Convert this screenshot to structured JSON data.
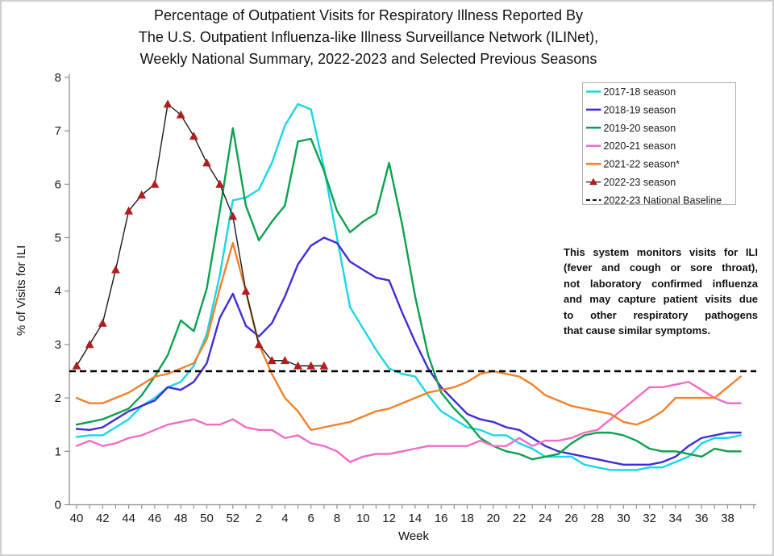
{
  "title": {
    "lines": [
      "Percentage of Outpatient Visits for Respiratory Illness Reported By",
      "The U.S. Outpatient Influenza-like Illness Surveillance Network (ILINet),",
      "Weekly National Summary, 2022-2023 and Selected Previous Seasons"
    ]
  },
  "annotation": {
    "lines": [
      "This system monitors visits for ILI",
      "(fever and cough or sore throat),",
      "not laboratory confirmed influenza",
      "and may capture patient visits due",
      "to other respiratory pathogens",
      "that cause similar symptoms."
    ]
  },
  "legend": {
    "border_color": "#b0b0b0",
    "items": [
      {
        "label": "2017-18 season",
        "type": "line",
        "color": "#19D7E4"
      },
      {
        "label": "2018-19 season",
        "type": "line",
        "color": "#3E2ED4"
      },
      {
        "label": "2019-20 season",
        "type": "line",
        "color": "#0CA14F"
      },
      {
        "label": "2020-21 season",
        "type": "line",
        "color": "#F26BC4"
      },
      {
        "label": "2021-22 season*",
        "type": "line",
        "color": "#F2822D"
      },
      {
        "label": "2022-23 season",
        "type": "triangle-line",
        "color": "#1a1a1a",
        "marker_color": "#B21E1E"
      },
      {
        "label": "2022-23 National Baseline",
        "type": "dashed",
        "color": "#000000"
      }
    ]
  },
  "chart_data": {
    "type": "line",
    "title": "Percentage of Outpatient Visits for Respiratory Illness (ILINet), Weekly National Summary, 2022-2023 and Selected Previous Seasons",
    "xlabel": "Week",
    "ylabel": "% of Visits for ILI",
    "ylim": [
      0,
      8
    ],
    "y_ticks": [
      0,
      1,
      2,
      3,
      4,
      5,
      6,
      7,
      8
    ],
    "x_weeks": [
      40,
      41,
      42,
      43,
      44,
      45,
      46,
      47,
      48,
      49,
      50,
      51,
      52,
      1,
      2,
      3,
      4,
      5,
      6,
      7,
      8,
      9,
      10,
      11,
      12,
      13,
      14,
      15,
      16,
      17,
      18,
      19,
      20,
      21,
      22,
      23,
      24,
      25,
      26,
      27,
      28,
      29,
      30,
      31,
      32,
      33,
      34,
      35,
      36,
      37,
      38,
      39
    ],
    "x_ticks_labeled": [
      40,
      42,
      44,
      46,
      48,
      50,
      52,
      2,
      4,
      6,
      8,
      10,
      12,
      14,
      16,
      18,
      20,
      22,
      24,
      26,
      28,
      30,
      32,
      34,
      36,
      38
    ],
    "grid": false,
    "legend_position": "upper right",
    "baseline": {
      "label": "2022-23 National Baseline",
      "value": 2.5,
      "color": "#000000"
    },
    "series": [
      {
        "name": "2017-18 season",
        "color": "#19D7E4",
        "values": [
          1.27,
          1.3,
          1.3,
          1.45,
          1.6,
          1.85,
          2.0,
          2.2,
          2.3,
          2.6,
          3.2,
          4.3,
          5.7,
          5.75,
          5.9,
          6.4,
          7.1,
          7.5,
          7.4,
          6.3,
          5.0,
          3.7,
          3.3,
          2.9,
          2.55,
          2.45,
          2.4,
          2.05,
          1.75,
          1.6,
          1.45,
          1.4,
          1.3,
          1.3,
          1.15,
          1.05,
          0.9,
          0.9,
          0.9,
          0.75,
          0.7,
          0.65,
          0.65,
          0.65,
          0.7,
          0.7,
          0.8,
          0.9,
          1.15,
          1.25,
          1.25,
          1.3
        ]
      },
      {
        "name": "2018-19 season",
        "color": "#3E2ED4",
        "values": [
          1.42,
          1.4,
          1.45,
          1.6,
          1.75,
          1.85,
          1.95,
          2.2,
          2.15,
          2.3,
          2.65,
          3.5,
          3.95,
          3.35,
          3.15,
          3.4,
          3.9,
          4.5,
          4.85,
          5.0,
          4.9,
          4.55,
          4.4,
          4.25,
          4.2,
          3.6,
          3.05,
          2.55,
          2.2,
          1.95,
          1.7,
          1.6,
          1.55,
          1.45,
          1.4,
          1.25,
          1.1,
          1.0,
          0.95,
          0.9,
          0.85,
          0.8,
          0.75,
          0.75,
          0.75,
          0.8,
          0.9,
          1.1,
          1.25,
          1.3,
          1.35,
          1.35
        ]
      },
      {
        "name": "2019-20 season",
        "color": "#0CA14F",
        "values": [
          1.5,
          1.55,
          1.6,
          1.7,
          1.8,
          2.05,
          2.4,
          2.8,
          3.45,
          3.25,
          4.05,
          5.5,
          7.05,
          5.6,
          4.95,
          5.3,
          5.6,
          6.8,
          6.85,
          6.25,
          5.5,
          5.1,
          5.3,
          5.45,
          6.4,
          5.25,
          3.9,
          2.8,
          2.1,
          1.8,
          1.55,
          1.25,
          1.1,
          1.0,
          0.95,
          0.85,
          0.9,
          0.95,
          1.15,
          1.3,
          1.35,
          1.35,
          1.3,
          1.2,
          1.05,
          1.0,
          1.0,
          0.95,
          0.9,
          1.05,
          1.0,
          1.0
        ]
      },
      {
        "name": "2020-21 season",
        "color": "#F26BC4",
        "values": [
          1.1,
          1.2,
          1.1,
          1.15,
          1.25,
          1.3,
          1.4,
          1.5,
          1.55,
          1.6,
          1.5,
          1.5,
          1.6,
          1.45,
          1.4,
          1.4,
          1.25,
          1.3,
          1.15,
          1.1,
          1.0,
          0.8,
          0.9,
          0.95,
          0.95,
          1.0,
          1.05,
          1.1,
          1.1,
          1.1,
          1.1,
          1.2,
          1.1,
          1.1,
          1.25,
          1.1,
          1.2,
          1.2,
          1.25,
          1.35,
          1.4,
          1.6,
          1.8,
          2.0,
          2.2,
          2.2,
          2.25,
          2.3,
          2.15,
          2.0,
          1.9,
          1.9
        ]
      },
      {
        "name": "2021-22 season*",
        "color": "#F2822D",
        "values": [
          2.0,
          1.9,
          1.9,
          2.0,
          2.1,
          2.25,
          2.4,
          2.45,
          2.55,
          2.65,
          3.1,
          4.05,
          4.9,
          4.0,
          3.0,
          2.45,
          2.0,
          1.75,
          1.4,
          1.45,
          1.5,
          1.55,
          1.65,
          1.75,
          1.8,
          1.9,
          2.0,
          2.1,
          2.15,
          2.2,
          2.3,
          2.45,
          2.5,
          2.45,
          2.4,
          2.25,
          2.05,
          1.95,
          1.85,
          1.8,
          1.75,
          1.7,
          1.55,
          1.5,
          1.6,
          1.75,
          2.0,
          2.0,
          2.0,
          2.0,
          2.2,
          2.4
        ]
      },
      {
        "name": "2022-23 season",
        "color": "#1a1a1a",
        "marker": "triangle",
        "marker_color": "#B21E1E",
        "values": [
          2.6,
          3.0,
          3.4,
          4.4,
          5.5,
          5.8,
          6.0,
          7.5,
          7.3,
          6.9,
          6.4,
          6.0,
          5.4,
          4.0,
          3.0,
          2.7,
          2.7,
          2.6,
          2.6,
          2.6,
          null,
          null,
          null,
          null,
          null,
          null,
          null,
          null,
          null,
          null,
          null,
          null,
          null,
          null,
          null,
          null,
          null,
          null,
          null,
          null,
          null,
          null,
          null,
          null,
          null,
          null,
          null,
          null,
          null,
          null,
          null,
          null
        ]
      }
    ]
  }
}
